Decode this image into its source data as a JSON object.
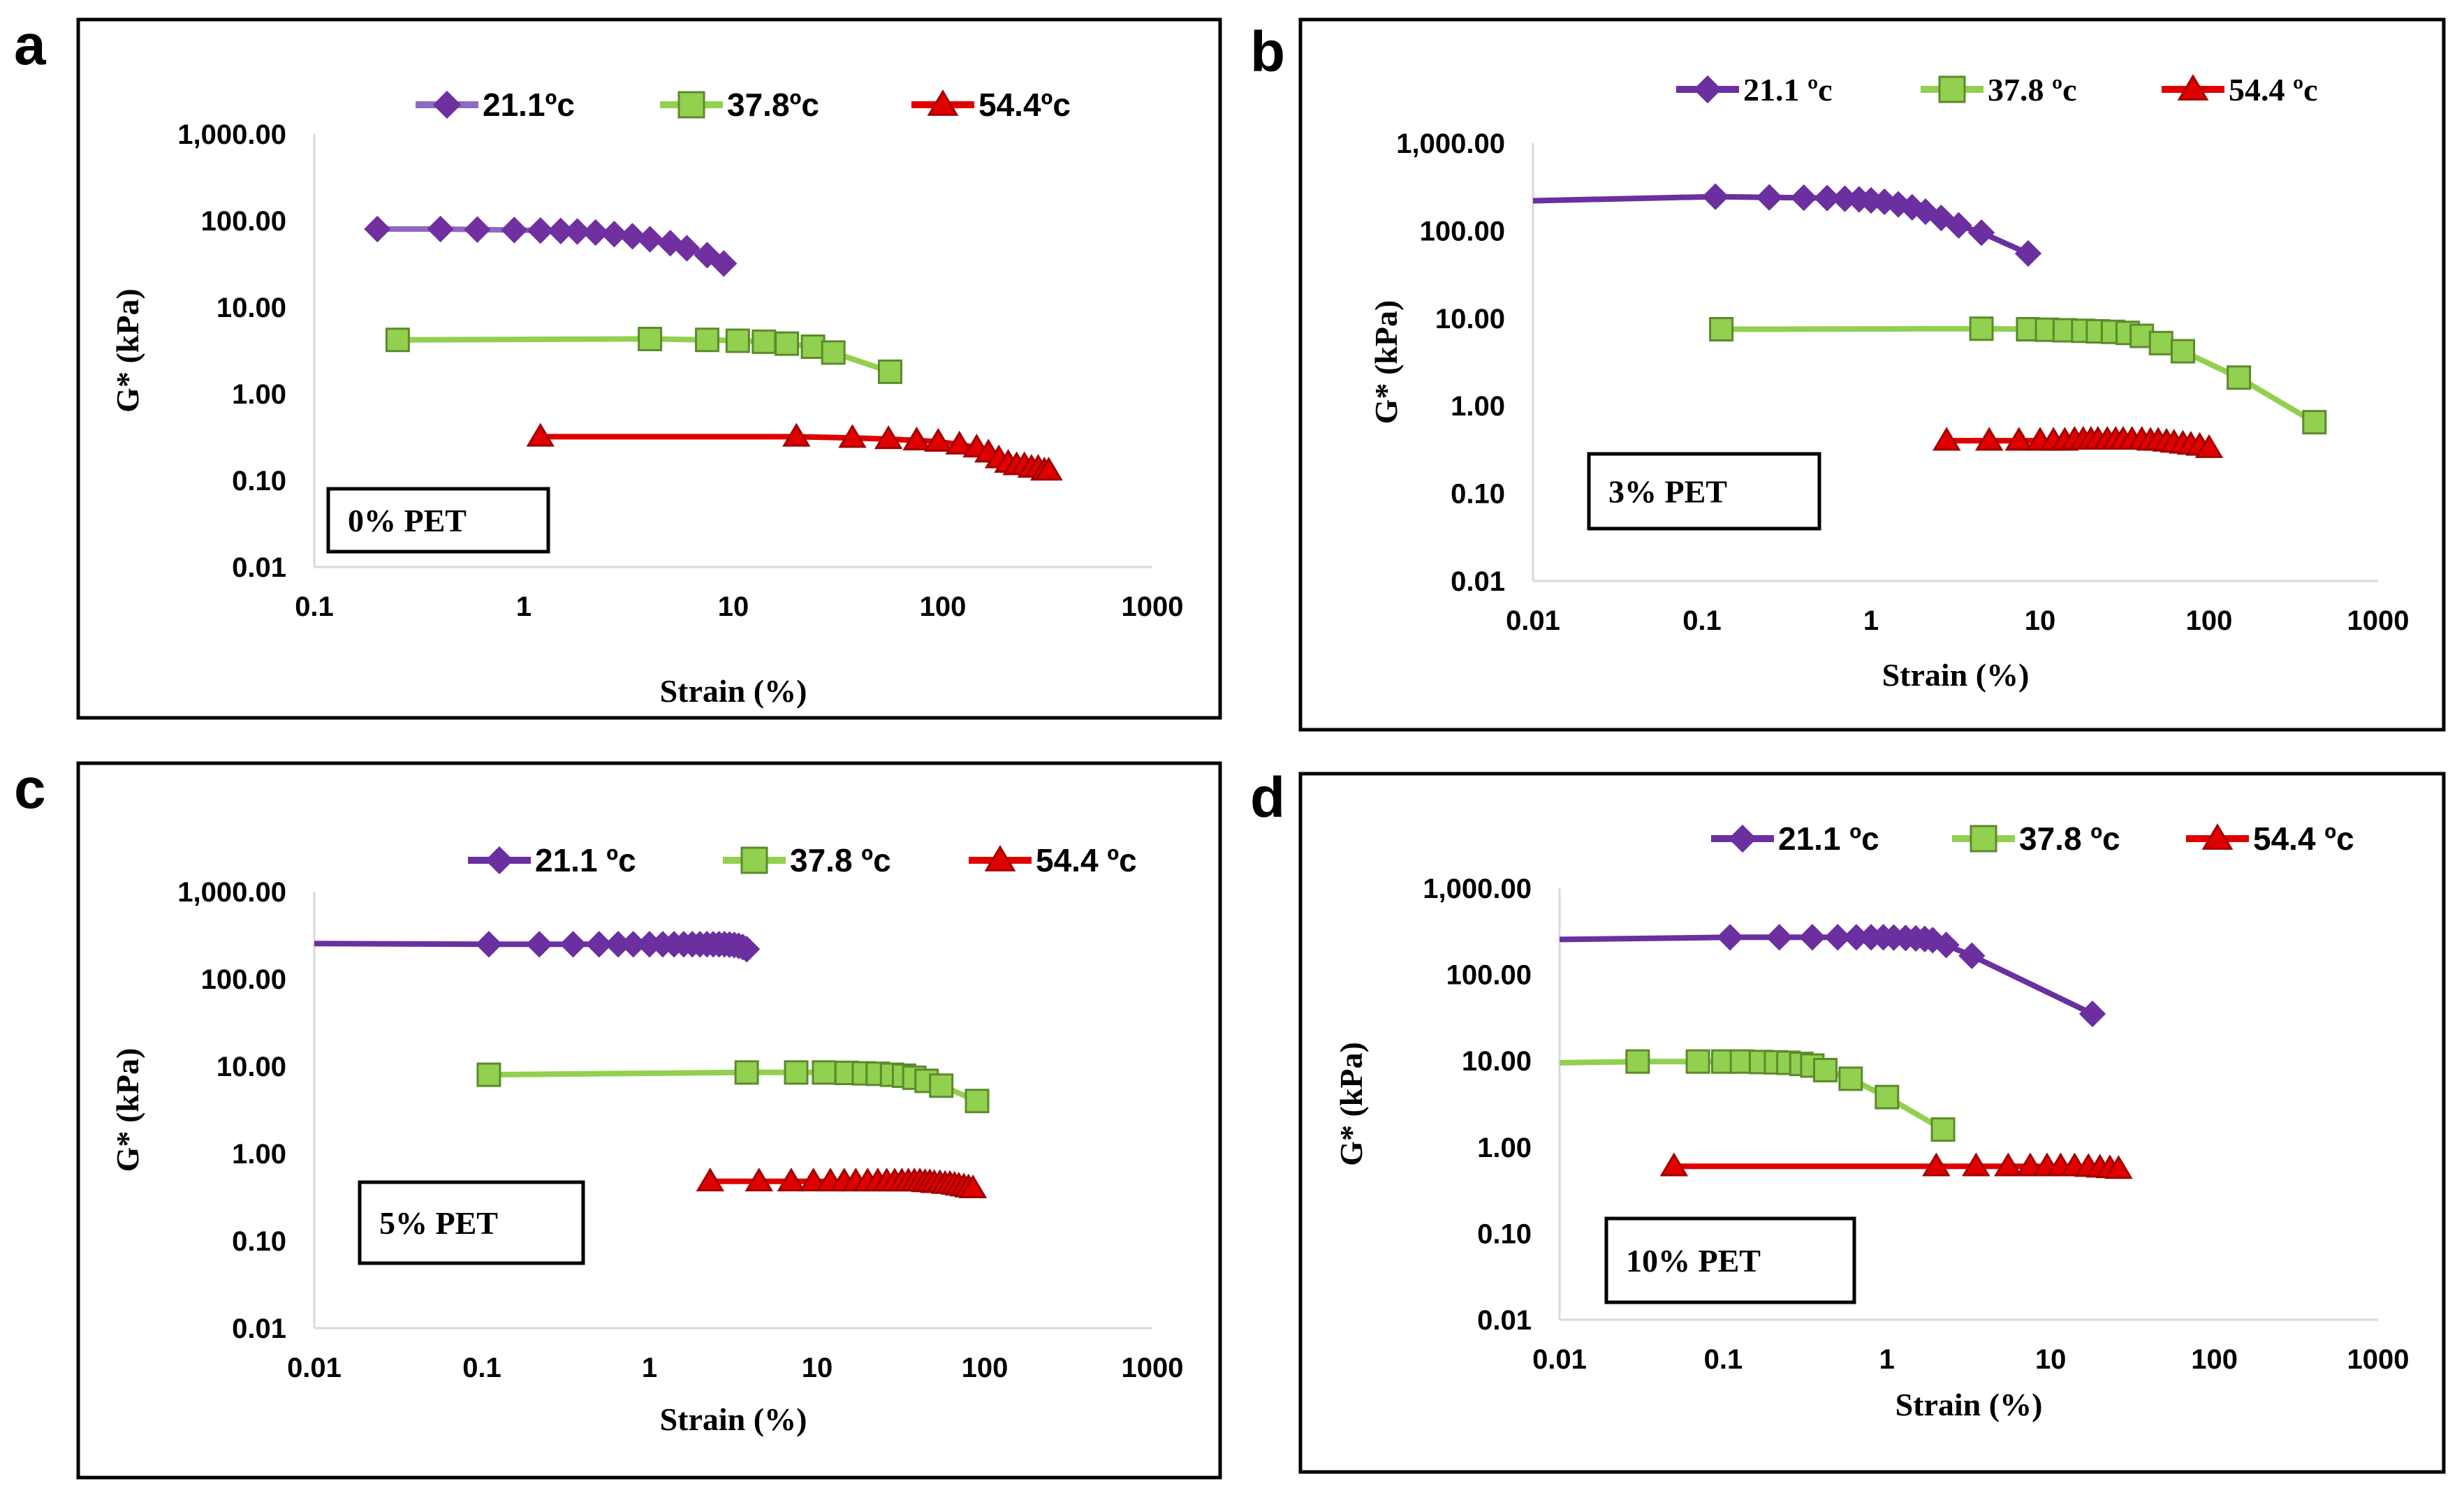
{
  "colors": {
    "s21": "#6B2FA0",
    "s37": "#92D050",
    "s54": "#E00000",
    "s21_a_line": "#8E6BC0",
    "s21_a_marker": "#7030A0",
    "marker_edge_37": "#5C8A2C",
    "marker_edge_54": "#A00000"
  },
  "chart_data": [
    {
      "type": "line",
      "panel": "a",
      "annotation": "0% PET",
      "xscale": "log",
      "yscale": "log",
      "xlim": [
        0.1,
        1000
      ],
      "ylim": [
        0.01,
        1000
      ],
      "xticks": [
        "0.1",
        "1",
        "10",
        "100",
        "1000"
      ],
      "yticks": [
        "0.01",
        "0.10",
        "1.00",
        "10.00",
        "100.00",
        "1,000.00"
      ],
      "xlabel": "Strain (%)",
      "ylabel": "G* (kPa)",
      "legend_position": "top",
      "series": [
        {
          "name": "21.1ºc",
          "key": "s21",
          "marker": "diamond",
          "x": [
            0.2,
            0.4,
            0.6,
            0.9,
            1.2,
            1.5,
            1.8,
            2.2,
            2.7,
            3.3,
            4.0,
            5.0,
            6.0,
            7.5,
            9.0
          ],
          "y": [
            80,
            80,
            79,
            78,
            77,
            76,
            75,
            73,
            70,
            66,
            61,
            55,
            48,
            40,
            32
          ]
        },
        {
          "name": "37.8ºc",
          "key": "s37",
          "marker": "square",
          "x": [
            0.25,
            4.0,
            7.5,
            10.5,
            14,
            18,
            24,
            30,
            56
          ],
          "y": [
            4.2,
            4.3,
            4.2,
            4.1,
            4.0,
            3.8,
            3.5,
            3.0,
            1.8
          ]
        },
        {
          "name": "54.4ºc",
          "key": "s54",
          "marker": "triangle",
          "x": [
            1.2,
            20,
            37,
            55,
            75,
            95,
            120,
            145,
            165,
            185,
            205,
            225,
            245,
            265,
            285,
            305,
            320
          ],
          "y": [
            0.32,
            0.32,
            0.31,
            0.3,
            0.29,
            0.28,
            0.26,
            0.24,
            0.21,
            0.18,
            0.16,
            0.15,
            0.15,
            0.14,
            0.14,
            0.13,
            0.13
          ]
        }
      ]
    },
    {
      "type": "line",
      "panel": "b",
      "annotation": "3% PET",
      "xscale": "log",
      "yscale": "log",
      "xlim": [
        0.01,
        1000
      ],
      "ylim": [
        0.01,
        1000
      ],
      "xticks": [
        "0.01",
        "0.1",
        "1",
        "10",
        "100",
        "1000"
      ],
      "yticks": [
        "0.01",
        "0.10",
        "1.00",
        "10.00",
        "100.00",
        "1,000.00"
      ],
      "xlabel": "Strain (%)",
      "ylabel": "G* (kPa)",
      "legend_position": "top",
      "series": [
        {
          "name": "21.1 ºc",
          "key": "s21",
          "marker": "diamond",
          "x": [
            0.01,
            0.12,
            0.25,
            0.4,
            0.55,
            0.7,
            0.85,
            1.0,
            1.2,
            1.45,
            1.75,
            2.1,
            2.6,
            3.3,
            4.5,
            8.5
          ],
          "y": [
            220,
            245,
            240,
            238,
            236,
            232,
            228,
            222,
            214,
            200,
            185,
            165,
            140,
            115,
            95,
            55
          ]
        },
        {
          "name": "37.8 ºc",
          "key": "s37",
          "marker": "square",
          "x": [
            0.13,
            4.5,
            8.5,
            11,
            14,
            18,
            22,
            27,
            33,
            40,
            52,
            70,
            150,
            420
          ],
          "y": [
            7.5,
            7.6,
            7.5,
            7.4,
            7.3,
            7.2,
            7.1,
            7.0,
            6.8,
            6.3,
            5.2,
            4.2,
            2.1,
            0.65
          ]
        },
        {
          "name": "54.4 ºc",
          "key": "s54",
          "marker": "triangle",
          "x": [
            2.8,
            5.0,
            7.5,
            10,
            12,
            14,
            16,
            18,
            20,
            22,
            25,
            28,
            31,
            35,
            40,
            45,
            50,
            56,
            62,
            70,
            78,
            88,
            100
          ],
          "y": [
            0.4,
            0.4,
            0.4,
            0.4,
            0.4,
            0.4,
            0.41,
            0.41,
            0.41,
            0.41,
            0.41,
            0.41,
            0.41,
            0.41,
            0.41,
            0.4,
            0.4,
            0.39,
            0.38,
            0.37,
            0.36,
            0.35,
            0.33
          ]
        }
      ]
    },
    {
      "type": "line",
      "panel": "c",
      "annotation": "5% PET",
      "xscale": "log",
      "yscale": "log",
      "xlim": [
        0.01,
        1000
      ],
      "ylim": [
        0.01,
        1000
      ],
      "xticks": [
        "0.01",
        "0.1",
        "1",
        "10",
        "100",
        "1000"
      ],
      "yticks": [
        "0.01",
        "0.10",
        "1.00",
        "10.00",
        "100.00",
        "1,000.00"
      ],
      "xlabel": "Strain (%)",
      "ylabel": "G* (kPa)",
      "legend_position": "top",
      "series": [
        {
          "name": "21.1 ºc",
          "key": "s21",
          "marker": "diamond",
          "x": [
            0.01,
            0.11,
            0.22,
            0.35,
            0.5,
            0.65,
            0.8,
            1.0,
            1.2,
            1.4,
            1.6,
            1.8,
            2.0,
            2.2,
            2.4,
            2.6,
            2.8,
            3.0,
            3.2,
            3.4,
            3.6,
            3.8
          ],
          "y": [
            255,
            250,
            250,
            250,
            250,
            250,
            250,
            250,
            250,
            250,
            250,
            250,
            250,
            250,
            250,
            250,
            250,
            248,
            245,
            240,
            232,
            220
          ]
        },
        {
          "name": "37.8 ºc",
          "key": "s37",
          "marker": "square",
          "x": [
            0.11,
            3.8,
            7.5,
            11,
            15,
            19,
            23,
            28,
            33,
            38,
            45,
            55,
            90
          ],
          "y": [
            8.0,
            8.5,
            8.5,
            8.5,
            8.4,
            8.3,
            8.2,
            8.0,
            7.8,
            7.4,
            6.8,
            6.0,
            4.0
          ]
        },
        {
          "name": "54.4 ºc",
          "key": "s54",
          "marker": "triangle",
          "x": [
            2.3,
            4.5,
            7.0,
            9.5,
            12,
            14.5,
            17,
            20,
            23,
            26,
            29,
            32,
            35,
            38,
            41,
            44,
            47,
            50,
            54,
            58,
            62,
            66,
            70,
            75,
            80,
            85
          ],
          "y": [
            0.48,
            0.48,
            0.48,
            0.48,
            0.48,
            0.48,
            0.48,
            0.48,
            0.48,
            0.48,
            0.48,
            0.48,
            0.48,
            0.48,
            0.48,
            0.47,
            0.47,
            0.46,
            0.46,
            0.45,
            0.45,
            0.44,
            0.43,
            0.42,
            0.41,
            0.4
          ]
        }
      ]
    },
    {
      "type": "line",
      "panel": "d",
      "annotation": "10% PET",
      "xscale": "log",
      "yscale": "log",
      "xlim": [
        0.01,
        1000
      ],
      "ylim": [
        0.01,
        1000
      ],
      "xticks": [
        "0.01",
        "0.1",
        "1",
        "10",
        "100",
        "1000"
      ],
      "yticks": [
        "0.01",
        "0.10",
        "1.00",
        "10.00",
        "100.00",
        "1,000.00"
      ],
      "xlabel": "Strain (%)",
      "ylabel": "G* (kPa)",
      "legend_position": "top",
      "series": [
        {
          "name": "21.1 ºc",
          "key": "s21",
          "marker": "diamond",
          "x": [
            0.01,
            0.11,
            0.22,
            0.35,
            0.5,
            0.65,
            0.8,
            0.95,
            1.1,
            1.3,
            1.5,
            1.7,
            1.9,
            2.3,
            3.3,
            18
          ],
          "y": [
            255,
            270,
            270,
            270,
            270,
            270,
            270,
            270,
            268,
            265,
            262,
            258,
            250,
            220,
            165,
            35
          ]
        },
        {
          "name": "37.8 ºc",
          "key": "s37",
          "marker": "square",
          "x": [
            0.01,
            0.03,
            0.07,
            0.1,
            0.13,
            0.17,
            0.21,
            0.25,
            0.3,
            0.35,
            0.42,
            0.6,
            1.0,
            2.2
          ],
          "y": [
            9.5,
            9.8,
            9.8,
            9.8,
            9.8,
            9.7,
            9.6,
            9.5,
            9.2,
            8.8,
            7.8,
            6.2,
            3.8,
            1.6
          ]
        },
        {
          "name": "54.4 ºc",
          "key": "s54",
          "marker": "triangle",
          "x": [
            0.05,
            2.0,
            3.5,
            5.5,
            7.5,
            9.5,
            11.5,
            14,
            17,
            20,
            23,
            26
          ],
          "y": [
            0.6,
            0.6,
            0.6,
            0.6,
            0.6,
            0.6,
            0.6,
            0.6,
            0.59,
            0.58,
            0.57,
            0.56
          ]
        }
      ]
    }
  ]
}
